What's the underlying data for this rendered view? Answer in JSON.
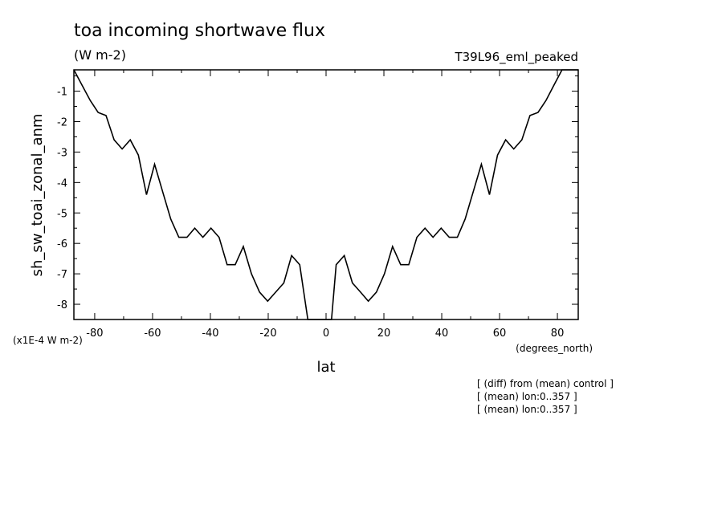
{
  "chart_data": {
    "type": "line",
    "title": "toa incoming shortwave flux",
    "units": "(W m-2)",
    "experiment": "T39L96_eml_peaked",
    "xlabel": "lat",
    "ylabel": "sh_sw_toai_zonal_anm",
    "x_units": "(degrees_north)",
    "y_scale_note": "(x1E-4 W m-2)",
    "xlim": [
      -87.2,
      87.2
    ],
    "ylim": [
      -8.5,
      -0.3
    ],
    "x_ticks": [
      "-80",
      "-60",
      "-40",
      "-20",
      "0",
      "20",
      "40",
      "60",
      "80"
    ],
    "x_tick_values": [
      -80,
      -60,
      -40,
      -20,
      0,
      20,
      40,
      60,
      80
    ],
    "y_ticks": [
      "-1",
      "-2",
      "-3",
      "-4",
      "-5",
      "-6",
      "-7",
      "-8"
    ],
    "y_tick_values": [
      -1,
      -2,
      -3,
      -4,
      -5,
      -6,
      -7,
      -8
    ],
    "notes": [
      "[ (diff) from (mean) control ]",
      "[ (mean) lon:0..357 ]",
      "[ (mean) lon:0..357 ]"
    ],
    "series": [
      {
        "x": [
          -87.2,
          -84.4,
          -81.6,
          -78.8,
          -76.1,
          -73.3,
          -70.5,
          -67.7,
          -64.9,
          -62.1,
          -59.3,
          -56.5,
          -53.7,
          -50.9,
          -48.1,
          -45.4,
          -42.6,
          -39.8,
          -37.0,
          -34.2,
          -31.4,
          -28.6,
          -25.8,
          -23.0,
          -20.2,
          -17.4,
          -14.6,
          -11.9,
          -9.1,
          -6.3,
          -3.5,
          -1.9,
          -0.7,
          0.7,
          1.9,
          3.5,
          6.3,
          9.1,
          11.9,
          14.6,
          17.4,
          20.2,
          23.0,
          25.8,
          28.6,
          31.4,
          34.2,
          37.0,
          39.8,
          42.6,
          45.4,
          48.1,
          50.9,
          53.7,
          56.5,
          59.3,
          62.1,
          64.9,
          67.7,
          70.5,
          73.3,
          76.1,
          78.8,
          81.6,
          84.4,
          87.2
        ],
        "values": [
          -0.3,
          -0.8,
          -1.3,
          -1.7,
          -1.8,
          -2.6,
          -2.9,
          -2.6,
          -3.1,
          -4.4,
          -3.4,
          -4.3,
          -5.2,
          -5.8,
          -5.8,
          -5.5,
          -5.8,
          -5.5,
          -5.8,
          -6.7,
          -6.7,
          -6.1,
          -7.0,
          -7.6,
          -7.9,
          -7.6,
          -7.3,
          -6.4,
          -6.7,
          -8.5,
          -8.5,
          -8.5,
          -8.5,
          -8.5,
          -8.5,
          -6.7,
          -6.4,
          -7.3,
          -7.6,
          -7.9,
          -7.6,
          -7.0,
          -6.1,
          -6.7,
          -6.7,
          -5.8,
          -5.5,
          -5.8,
          -5.5,
          -5.8,
          -5.8,
          -5.2,
          -4.3,
          -3.4,
          -4.4,
          -3.1,
          -2.6,
          -2.9,
          -2.6,
          -1.8,
          -1.7,
          -1.3,
          -0.8,
          -0.3,
          -0.3,
          -0.3
        ]
      }
    ],
    "grid": false,
    "line_color": "#000000"
  }
}
